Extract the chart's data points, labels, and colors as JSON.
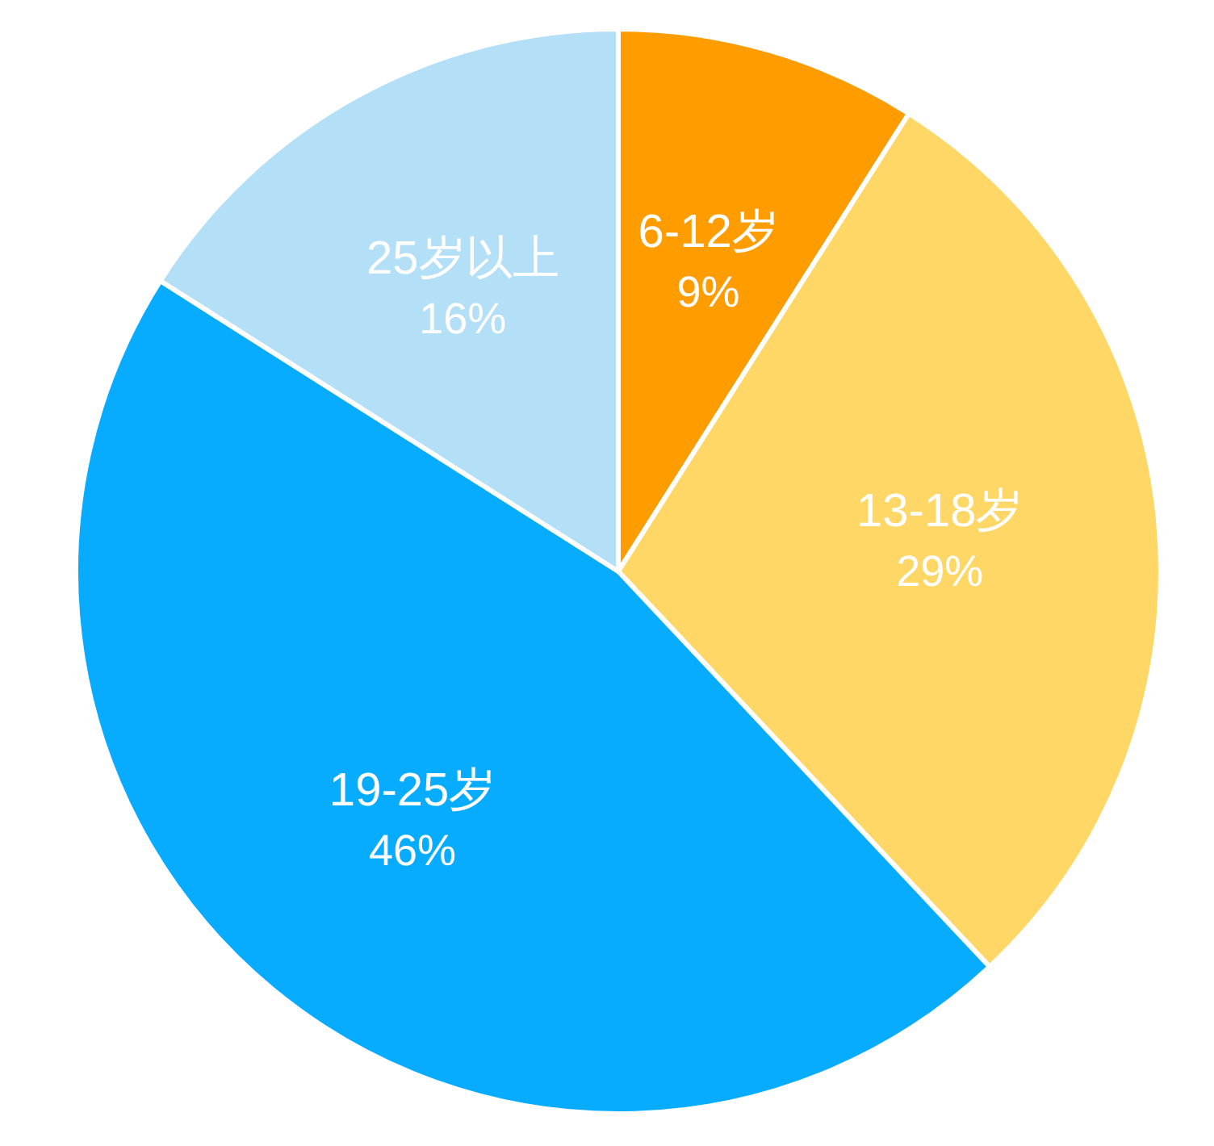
{
  "chart_data": {
    "type": "pie",
    "categories": [
      "6-12岁",
      "13-18岁",
      "19-25岁",
      "25岁以上"
    ],
    "values": [
      9,
      29,
      46,
      16
    ],
    "value_labels": [
      "9%",
      "29%",
      "46%",
      "16%"
    ],
    "colors": [
      "#ff9c00",
      "#ffd766",
      "#08acff",
      "#b3dff7"
    ]
  }
}
